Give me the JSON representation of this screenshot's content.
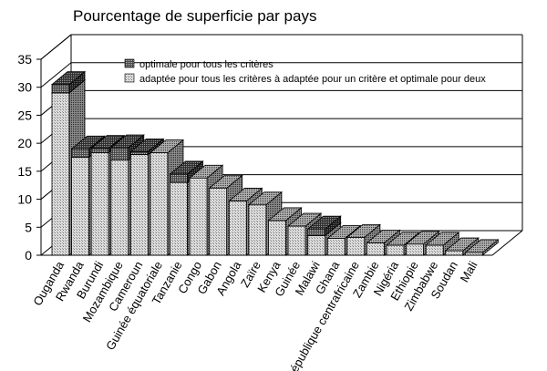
{
  "chart_data": {
    "type": "bar",
    "title": "Pourcentage de superficie par pays",
    "xlabel": "",
    "ylabel": "",
    "ylim": [
      0,
      35
    ],
    "yticks": [
      0,
      5,
      10,
      15,
      20,
      25,
      30,
      35
    ],
    "stacked": true,
    "three_d": true,
    "grid": true,
    "legend_position": "top",
    "categories": [
      "Ouganda",
      "Rwanda",
      "Burundi",
      "Mozambique",
      "Cameroun",
      "Guinée équatoriale",
      "Tanzanie",
      "Congo",
      "Gabon",
      "Angola",
      "Zaïre",
      "Kenya",
      "Guinée",
      "Malawi",
      "Ghana",
      "République centrafricaine",
      "Zambie",
      "Nigéria",
      "Ethiopie",
      "Zimbabwe",
      "Soudan",
      "Mali"
    ],
    "series": [
      {
        "name": "adaptée pour tous les critères à adaptée pour un critère et optimale pour deux",
        "pattern": "light",
        "values": [
          29,
          17.5,
          18.3,
          17,
          18,
          18.3,
          13,
          13.8,
          12,
          9.7,
          9,
          6.2,
          5.2,
          3.5,
          3,
          3.2,
          2.2,
          1.8,
          2,
          1.8,
          0.8,
          0.5
        ]
      },
      {
        "name": "optimale pour tous les critères",
        "pattern": "dark",
        "values": [
          1.5,
          1.5,
          0.8,
          2.2,
          0.5,
          0,
          1.5,
          0,
          0,
          0,
          0,
          0,
          0,
          1.2,
          0,
          0,
          0,
          0,
          0,
          0,
          0,
          0
        ]
      }
    ]
  }
}
